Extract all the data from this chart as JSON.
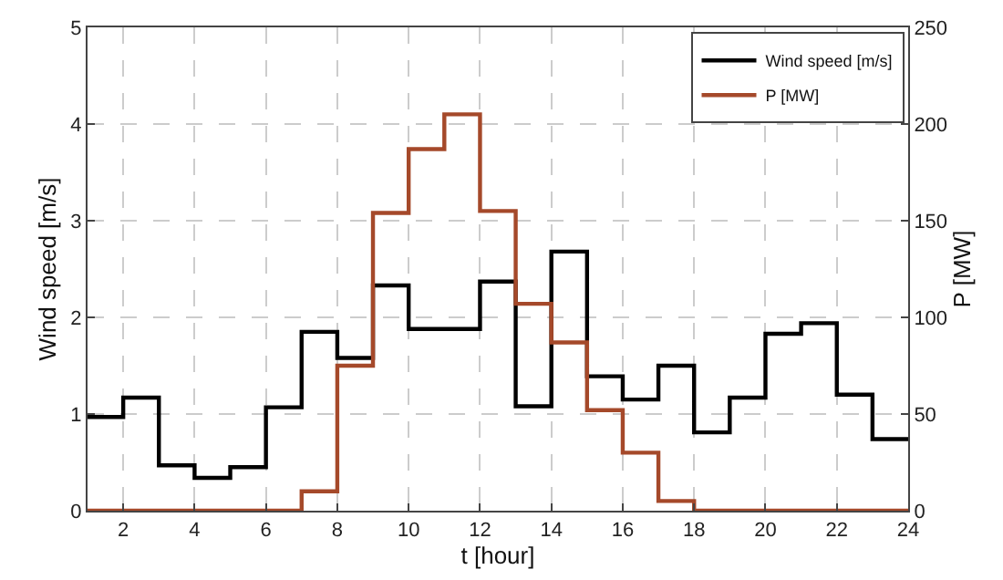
{
  "chart_data": {
    "type": "step",
    "xlabel": "t [hour]",
    "ylabel": "Wind speed [m/s]",
    "y2label": "P [MW]",
    "x": [
      1,
      2,
      3,
      4,
      5,
      6,
      7,
      8,
      9,
      10,
      11,
      12,
      13,
      14,
      15,
      16,
      17,
      18,
      19,
      20,
      21,
      22,
      23,
      24
    ],
    "series": [
      {
        "name": "Wind speed [m/s]",
        "color": "#000000",
        "values": [
          0.97,
          1.17,
          0.47,
          0.34,
          0.45,
          1.07,
          1.85,
          1.58,
          2.33,
          1.88,
          1.88,
          2.37,
          1.08,
          2.68,
          1.39,
          1.15,
          1.5,
          0.81,
          1.17,
          1.83,
          1.94,
          1.2,
          0.74,
          0.74
        ]
      },
      {
        "name": "P [MW]",
        "color": "#a5492a",
        "axis": "y2",
        "values": [
          0,
          0,
          0,
          0,
          0,
          0,
          10,
          75,
          154,
          187,
          205,
          155,
          107,
          87,
          52,
          30,
          5,
          0,
          0,
          0,
          0,
          0,
          0,
          0
        ]
      }
    ],
    "xlim": [
      1,
      24
    ],
    "xticks": [
      2,
      4,
      6,
      8,
      10,
      12,
      14,
      16,
      18,
      20,
      22,
      24
    ],
    "ylim": [
      0,
      5
    ],
    "yticks": [
      0,
      1,
      2,
      3,
      4,
      5
    ],
    "y2lim": [
      0,
      250
    ],
    "y2ticks": [
      0,
      50,
      100,
      150,
      200,
      250
    ],
    "grid": true,
    "legend": "top right",
    "line_style": "solid",
    "marker": "none"
  }
}
